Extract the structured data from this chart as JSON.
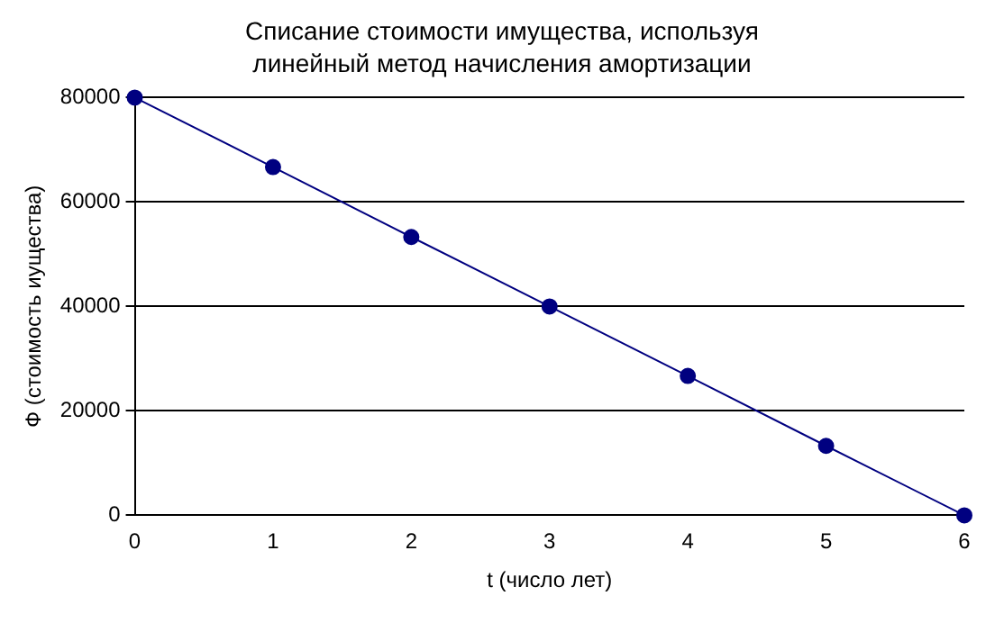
{
  "chart_data": {
    "type": "line",
    "title": "Списание стоимости имущества, используя линейный метод начисления амортизации",
    "xlabel": "t (число лет)",
    "ylabel": "Ф (стоимость иущества)",
    "x": [
      0,
      1,
      2,
      3,
      4,
      5,
      6
    ],
    "series": [
      {
        "color": "#000080",
        "values": [
          80000,
          66700,
          53300,
          40000,
          26700,
          13300,
          0
        ]
      }
    ],
    "xlim": [
      0,
      6
    ],
    "xticks": [
      0,
      1,
      2,
      3,
      4,
      5,
      6
    ],
    "ylim": [
      0,
      80000
    ],
    "yticks": [
      0,
      20000,
      40000,
      60000,
      80000
    ],
    "grid": "y",
    "legend": false,
    "marker": "circle",
    "line_style": "solid"
  }
}
